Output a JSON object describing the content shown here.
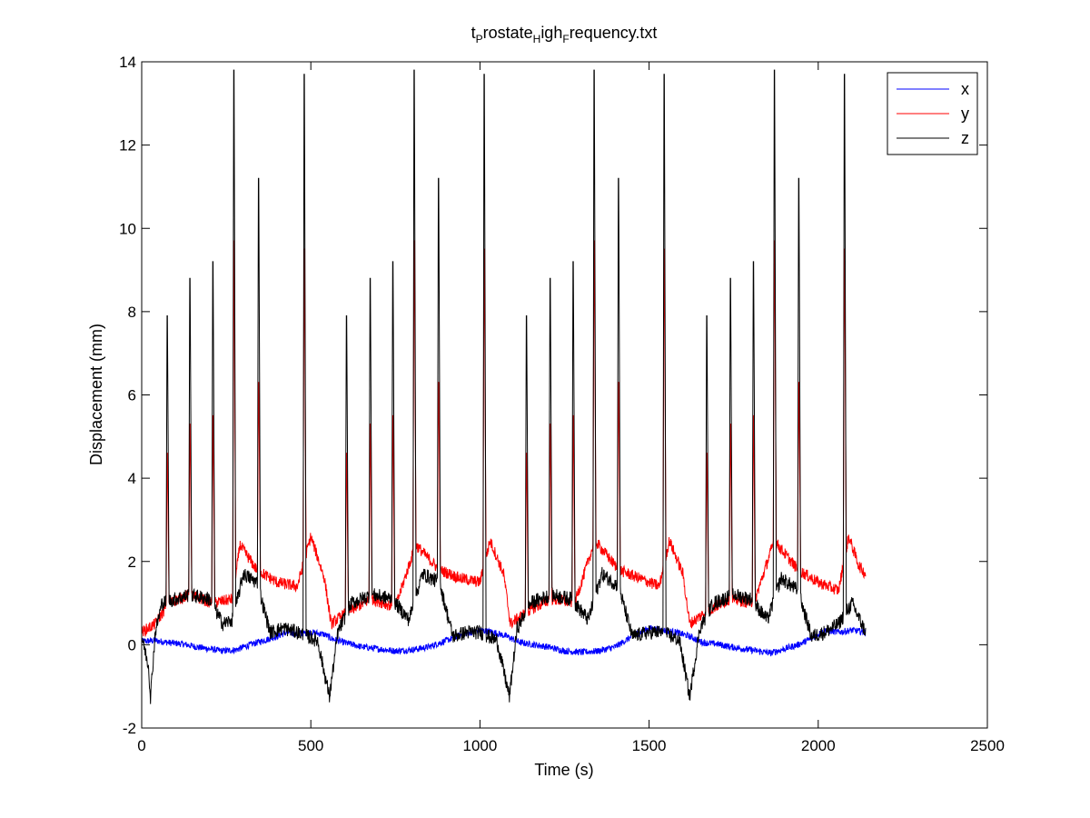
{
  "chart_data": {
    "type": "line",
    "title": {
      "parts": [
        {
          "text": "t",
          "sub": false
        },
        {
          "text": "P",
          "sub": true
        },
        {
          "text": "rostate",
          "sub": false
        },
        {
          "text": "H",
          "sub": true
        },
        {
          "text": "igh",
          "sub": false
        },
        {
          "text": "F",
          "sub": true
        },
        {
          "text": "requency.txt",
          "sub": false
        }
      ]
    },
    "xlabel": "Time (s)",
    "ylabel": "Displacement (mm)",
    "xlim": [
      0,
      2500
    ],
    "ylim": [
      -2,
      14
    ],
    "xticks": [
      0,
      500,
      1000,
      1500,
      2000,
      2500
    ],
    "yticks": [
      -2,
      0,
      2,
      4,
      6,
      8,
      10,
      12,
      14
    ],
    "grid": false,
    "legend_position": "top-right",
    "x_end": 2140,
    "series": [
      {
        "name": "x",
        "color": "#0000ff",
        "points": [
          [
            0,
            0.08
          ],
          [
            40,
            0.1
          ],
          [
            80,
            0.05
          ],
          [
            120,
            0.02
          ],
          [
            160,
            -0.05
          ],
          [
            200,
            -0.1
          ],
          [
            240,
            -0.15
          ],
          [
            280,
            -0.12
          ],
          [
            320,
            0.0
          ],
          [
            360,
            0.1
          ],
          [
            400,
            0.2
          ],
          [
            430,
            0.3
          ],
          [
            460,
            0.25
          ],
          [
            500,
            0.3
          ],
          [
            540,
            0.25
          ],
          [
            560,
            0.15
          ],
          [
            600,
            0.05
          ],
          [
            650,
            -0.05
          ],
          [
            700,
            -0.1
          ],
          [
            750,
            -0.15
          ],
          [
            800,
            -0.12
          ],
          [
            850,
            -0.05
          ],
          [
            900,
            0.1
          ],
          [
            950,
            0.25
          ],
          [
            1000,
            0.35
          ],
          [
            1040,
            0.3
          ],
          [
            1080,
            0.2
          ],
          [
            1120,
            0.05
          ],
          [
            1160,
            0.0
          ],
          [
            1200,
            -0.05
          ],
          [
            1250,
            -0.15
          ],
          [
            1300,
            -0.18
          ],
          [
            1350,
            -0.15
          ],
          [
            1400,
            -0.05
          ],
          [
            1450,
            0.2
          ],
          [
            1500,
            0.4
          ],
          [
            1540,
            0.35
          ],
          [
            1580,
            0.3
          ],
          [
            1620,
            0.2
          ],
          [
            1660,
            0.05
          ],
          [
            1700,
            0.02
          ],
          [
            1740,
            -0.05
          ],
          [
            1780,
            -0.1
          ],
          [
            1820,
            -0.15
          ],
          [
            1860,
            -0.2
          ],
          [
            1900,
            -0.1
          ],
          [
            1940,
            0.0
          ],
          [
            1980,
            0.15
          ],
          [
            2020,
            0.35
          ],
          [
            2060,
            0.3
          ],
          [
            2100,
            0.35
          ],
          [
            2140,
            0.3
          ]
        ]
      },
      {
        "name": "y",
        "color": "#ff0000",
        "peaks": [
          [
            75,
            4.6
          ],
          [
            142,
            5.3
          ],
          [
            210,
            5.5
          ],
          [
            272,
            9.7
          ],
          [
            345,
            6.3
          ],
          [
            480,
            9.5
          ],
          [
            605,
            4.6
          ],
          [
            675,
            5.3
          ],
          [
            742,
            5.5
          ],
          [
            805,
            9.7
          ],
          [
            877,
            6.3
          ],
          [
            1012,
            9.5
          ],
          [
            1137,
            4.6
          ],
          [
            1207,
            5.3
          ],
          [
            1275,
            5.5
          ],
          [
            1337,
            9.7
          ],
          [
            1409,
            6.3
          ],
          [
            1544,
            9.5
          ],
          [
            1670,
            4.6
          ],
          [
            1740,
            5.3
          ],
          [
            1808,
            5.5
          ],
          [
            1870,
            9.7
          ],
          [
            1942,
            6.3
          ],
          [
            2077,
            9.5
          ]
        ],
        "baseline": [
          [
            0,
            0.3
          ],
          [
            40,
            0.5
          ],
          [
            80,
            1.0
          ],
          [
            140,
            1.2
          ],
          [
            210,
            1.0
          ],
          [
            270,
            1.1
          ],
          [
            290,
            2.4
          ],
          [
            340,
            1.8
          ],
          [
            400,
            1.5
          ],
          [
            460,
            1.4
          ],
          [
            500,
            2.6
          ],
          [
            540,
            1.6
          ],
          [
            560,
            0.5
          ],
          [
            610,
            0.8
          ],
          [
            680,
            1.1
          ],
          [
            750,
            0.9
          ],
          [
            810,
            2.4
          ],
          [
            880,
            1.8
          ],
          [
            940,
            1.6
          ],
          [
            1000,
            1.5
          ],
          [
            1030,
            2.5
          ],
          [
            1070,
            1.7
          ],
          [
            1090,
            0.5
          ],
          [
            1140,
            0.8
          ],
          [
            1210,
            1.1
          ],
          [
            1280,
            1.0
          ],
          [
            1340,
            2.5
          ],
          [
            1410,
            1.8
          ],
          [
            1470,
            1.6
          ],
          [
            1530,
            1.4
          ],
          [
            1560,
            2.5
          ],
          [
            1600,
            1.7
          ],
          [
            1620,
            0.5
          ],
          [
            1670,
            0.8
          ],
          [
            1740,
            1.1
          ],
          [
            1810,
            1.0
          ],
          [
            1870,
            2.5
          ],
          [
            1940,
            1.8
          ],
          [
            2000,
            1.5
          ],
          [
            2060,
            1.3
          ],
          [
            2090,
            2.6
          ],
          [
            2120,
            1.9
          ],
          [
            2140,
            1.7
          ]
        ]
      },
      {
        "name": "z",
        "color": "#000000",
        "peaks": [
          [
            75,
            7.9
          ],
          [
            142,
            8.8
          ],
          [
            210,
            9.2
          ],
          [
            272,
            13.8
          ],
          [
            345,
            11.2
          ],
          [
            480,
            13.7
          ],
          [
            605,
            7.9
          ],
          [
            675,
            8.8
          ],
          [
            742,
            9.2
          ],
          [
            805,
            13.8
          ],
          [
            877,
            11.2
          ],
          [
            1012,
            13.7
          ],
          [
            1137,
            7.9
          ],
          [
            1207,
            8.8
          ],
          [
            1275,
            9.2
          ],
          [
            1337,
            13.8
          ],
          [
            1409,
            11.2
          ],
          [
            1544,
            13.7
          ],
          [
            1670,
            7.9
          ],
          [
            1740,
            8.8
          ],
          [
            1808,
            9.2
          ],
          [
            1870,
            13.8
          ],
          [
            1942,
            11.2
          ],
          [
            2077,
            13.7
          ]
        ],
        "baseline": [
          [
            0,
            0.2
          ],
          [
            20,
            -0.5
          ],
          [
            26,
            -1.25
          ],
          [
            40,
            0.3
          ],
          [
            60,
            1.0
          ],
          [
            100,
            1.1
          ],
          [
            140,
            1.2
          ],
          [
            200,
            1.1
          ],
          [
            240,
            0.5
          ],
          [
            270,
            0.6
          ],
          [
            300,
            1.7
          ],
          [
            340,
            1.5
          ],
          [
            380,
            0.3
          ],
          [
            420,
            0.4
          ],
          [
            460,
            0.3
          ],
          [
            520,
            0.1
          ],
          [
            555,
            -1.25
          ],
          [
            580,
            0.3
          ],
          [
            620,
            1.0
          ],
          [
            680,
            1.2
          ],
          [
            740,
            1.1
          ],
          [
            790,
            0.6
          ],
          [
            830,
            1.7
          ],
          [
            880,
            1.5
          ],
          [
            920,
            0.2
          ],
          [
            960,
            0.3
          ],
          [
            1000,
            0.3
          ],
          [
            1050,
            0.1
          ],
          [
            1087,
            -1.25
          ],
          [
            1110,
            0.4
          ],
          [
            1150,
            1.0
          ],
          [
            1210,
            1.2
          ],
          [
            1270,
            1.1
          ],
          [
            1320,
            0.6
          ],
          [
            1360,
            1.7
          ],
          [
            1410,
            1.4
          ],
          [
            1450,
            0.2
          ],
          [
            1500,
            0.3
          ],
          [
            1540,
            0.3
          ],
          [
            1590,
            0.1
          ],
          [
            1620,
            -1.25
          ],
          [
            1650,
            0.4
          ],
          [
            1690,
            1.0
          ],
          [
            1750,
            1.2
          ],
          [
            1800,
            1.1
          ],
          [
            1850,
            0.6
          ],
          [
            1890,
            1.6
          ],
          [
            1940,
            1.3
          ],
          [
            1980,
            0.2
          ],
          [
            2020,
            0.3
          ],
          [
            2060,
            0.5
          ],
          [
            2100,
            1.0
          ],
          [
            2140,
            0.3
          ]
        ]
      }
    ]
  }
}
